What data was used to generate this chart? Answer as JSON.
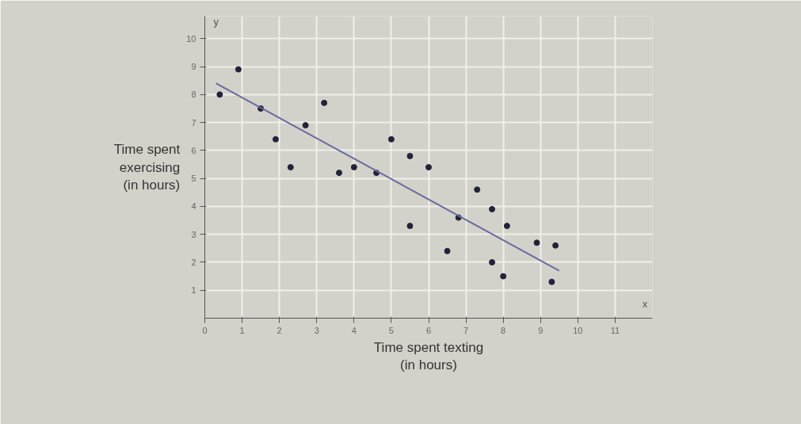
{
  "chart_data": {
    "type": "scatter",
    "xlabel": "Time spent texting\n(in hours)",
    "ylabel": "Time spent\nexercising\n(in hours)",
    "x": [
      0.4,
      0.9,
      1.5,
      1.9,
      2.3,
      2.7,
      3.2,
      3.6,
      4.0,
      4.6,
      5.0,
      5.5,
      6.0,
      5.5,
      6.5,
      6.8,
      7.3,
      7.7,
      7.7,
      8.0,
      8.1,
      8.9,
      9.4,
      9.3
    ],
    "series": [
      {
        "marker": "circle",
        "color": "#22223a",
        "values": [
          8.0,
          8.9,
          7.5,
          6.4,
          5.4,
          6.9,
          7.7,
          5.2,
          5.4,
          5.2,
          6.4,
          5.8,
          5.4,
          3.3,
          2.4,
          3.6,
          4.6,
          3.9,
          2.0,
          1.5,
          3.3,
          2.7,
          2.6,
          1.3
        ]
      },
      {
        "type": "line",
        "color": "#6a6a9e",
        "x": [
          0.3,
          9.5
        ],
        "values": [
          8.4,
          1.7
        ]
      }
    ],
    "xlim": [
      0,
      12
    ],
    "ylim": [
      0,
      10.8
    ],
    "xticks": [
      0,
      1,
      2,
      3,
      4,
      5,
      6,
      7,
      8,
      9,
      10,
      11
    ],
    "yticks": [
      1,
      2,
      3,
      4,
      5,
      6,
      7,
      8,
      9,
      10
    ],
    "annotations": [
      "x",
      "y"
    ],
    "grid": true
  }
}
